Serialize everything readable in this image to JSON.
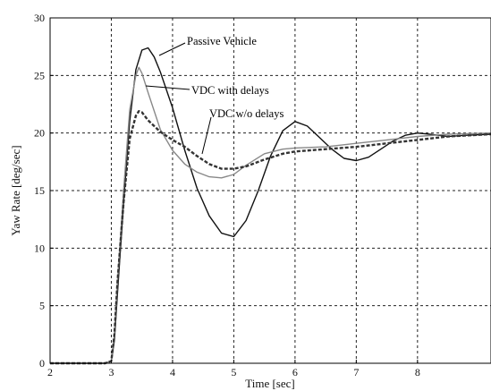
{
  "chart_data": {
    "type": "line",
    "xlabel": "Time [sec]",
    "ylabel": "Yaw Rate [deg/sec]",
    "xlim": [
      2,
      9.2
    ],
    "ylim": [
      0,
      30
    ],
    "xticks": [
      2,
      3,
      4,
      5,
      6,
      7,
      8
    ],
    "yticks": [
      0,
      5,
      10,
      15,
      20,
      25,
      30
    ],
    "grid": true,
    "series": [
      {
        "name": "Passive Vehicle",
        "color": "#111111",
        "style": "solid",
        "points": [
          [
            2.0,
            0
          ],
          [
            2.9,
            0
          ],
          [
            3.0,
            0.2
          ],
          [
            3.05,
            2
          ],
          [
            3.1,
            6
          ],
          [
            3.2,
            14
          ],
          [
            3.3,
            21
          ],
          [
            3.4,
            25.5
          ],
          [
            3.5,
            27.2
          ],
          [
            3.6,
            27.4
          ],
          [
            3.7,
            26.6
          ],
          [
            3.8,
            25.3
          ],
          [
            4.0,
            22.2
          ],
          [
            4.2,
            18.5
          ],
          [
            4.4,
            15.2
          ],
          [
            4.6,
            12.8
          ],
          [
            4.8,
            11.3
          ],
          [
            5.0,
            11.0
          ],
          [
            5.2,
            12.4
          ],
          [
            5.4,
            15.0
          ],
          [
            5.6,
            18.0
          ],
          [
            5.8,
            20.2
          ],
          [
            6.0,
            21.0
          ],
          [
            6.2,
            20.6
          ],
          [
            6.4,
            19.6
          ],
          [
            6.6,
            18.6
          ],
          [
            6.8,
            17.8
          ],
          [
            7.0,
            17.6
          ],
          [
            7.2,
            17.9
          ],
          [
            7.4,
            18.6
          ],
          [
            7.6,
            19.3
          ],
          [
            7.8,
            19.8
          ],
          [
            8.0,
            20.0
          ],
          [
            8.2,
            19.9
          ],
          [
            8.5,
            19.7
          ],
          [
            8.8,
            19.8
          ],
          [
            9.2,
            19.9
          ]
        ]
      },
      {
        "name": "VDC with delays",
        "color": "#888888",
        "style": "solid",
        "points": [
          [
            2.0,
            0
          ],
          [
            2.9,
            0
          ],
          [
            3.0,
            0.2
          ],
          [
            3.05,
            2.5
          ],
          [
            3.1,
            7
          ],
          [
            3.2,
            15
          ],
          [
            3.3,
            22
          ],
          [
            3.4,
            25.0
          ],
          [
            3.45,
            25.7
          ],
          [
            3.5,
            25.2
          ],
          [
            3.6,
            23.5
          ],
          [
            3.8,
            20.3
          ],
          [
            4.0,
            18.5
          ],
          [
            4.2,
            17.3
          ],
          [
            4.4,
            16.6
          ],
          [
            4.6,
            16.2
          ],
          [
            4.8,
            16.1
          ],
          [
            5.0,
            16.4
          ],
          [
            5.2,
            17.2
          ],
          [
            5.5,
            18.2
          ],
          [
            5.8,
            18.6
          ],
          [
            6.0,
            18.7
          ],
          [
            6.5,
            18.8
          ],
          [
            7.0,
            19.1
          ],
          [
            7.5,
            19.4
          ],
          [
            8.0,
            19.7
          ],
          [
            8.5,
            19.9
          ],
          [
            9.2,
            20.0
          ]
        ]
      },
      {
        "name": "VDC w/o delays",
        "color": "#333333",
        "style": "dashed",
        "points": [
          [
            2.0,
            0
          ],
          [
            2.9,
            0
          ],
          [
            3.0,
            0.2
          ],
          [
            3.05,
            2.5
          ],
          [
            3.1,
            7
          ],
          [
            3.2,
            14
          ],
          [
            3.3,
            19.5
          ],
          [
            3.4,
            21.5
          ],
          [
            3.45,
            21.9
          ],
          [
            3.5,
            21.8
          ],
          [
            3.6,
            21.1
          ],
          [
            3.8,
            20.1
          ],
          [
            4.0,
            19.4
          ],
          [
            4.2,
            18.8
          ],
          [
            4.4,
            18.0
          ],
          [
            4.6,
            17.3
          ],
          [
            4.8,
            16.9
          ],
          [
            5.0,
            16.9
          ],
          [
            5.2,
            17.1
          ],
          [
            5.5,
            17.7
          ],
          [
            5.8,
            18.2
          ],
          [
            6.0,
            18.4
          ],
          [
            6.5,
            18.6
          ],
          [
            7.0,
            18.8
          ],
          [
            7.5,
            19.1
          ],
          [
            8.0,
            19.4
          ],
          [
            8.5,
            19.7
          ],
          [
            9.2,
            19.9
          ]
        ]
      }
    ]
  }
}
